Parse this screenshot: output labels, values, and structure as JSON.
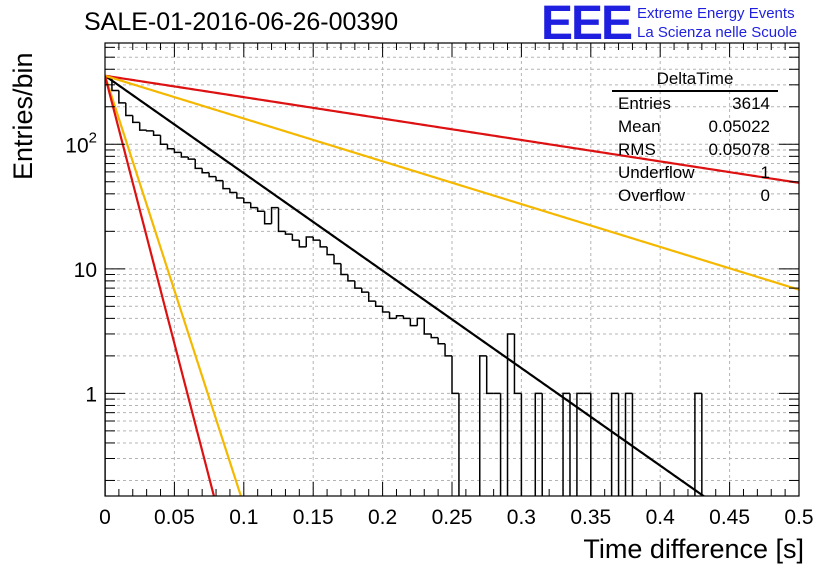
{
  "chart_data": {
    "type": "histogram",
    "title": "SALE-01-2016-06-26-00390",
    "xlabel": "Time difference [s]",
    "ylabel": "Entries/bin",
    "xlim": [
      0,
      0.5
    ],
    "ylim": [
      0.15,
      650
    ],
    "yscale": "log",
    "grid": true,
    "x_ticks": [
      "0",
      "0.05",
      "0.1",
      "0.15",
      "0.2",
      "0.25",
      "0.3",
      "0.35",
      "0.4",
      "0.45",
      "0.5"
    ],
    "y_ticks": [
      {
        "value": 1,
        "base": "1",
        "exp": ""
      },
      {
        "value": 10,
        "base": "10",
        "exp": ""
      },
      {
        "value": 100,
        "base": "10",
        "exp": "2"
      }
    ],
    "bin_width": 0.005,
    "histogram": {
      "name": "DeltaTime",
      "color": "#000000",
      "counts": [
        340,
        270,
        215,
        170,
        150,
        130,
        128,
        118,
        100,
        92,
        86,
        79,
        76,
        64,
        59,
        55,
        51,
        44,
        41,
        37,
        34,
        31,
        29,
        23,
        31,
        20,
        19,
        17,
        15,
        18,
        17,
        15,
        13,
        11,
        9,
        8,
        7,
        6.5,
        5.5,
        5,
        4.5,
        4,
        4.2,
        4,
        3.5,
        4,
        3,
        2.8,
        2.5,
        2,
        1,
        0.1,
        0.1,
        0.1,
        2,
        1,
        1,
        0.1,
        3,
        1,
        0.1,
        0.1,
        1,
        0.1,
        0.1,
        0.1,
        1,
        0.1,
        1,
        1,
        0.1,
        0.1,
        0.1,
        1,
        0.1,
        1,
        0.1,
        0.1,
        0.1,
        0.1,
        0.1,
        0.1,
        0.1,
        0.1,
        0.1,
        1
      ]
    },
    "fits": [
      {
        "name": "fit-black",
        "color": "#000000",
        "y0": 355,
        "tau": 0.0555
      },
      {
        "name": "fit-red-slow",
        "color": "#dd1111",
        "y0": 355,
        "tau": 0.2525
      },
      {
        "name": "fit-yellow-slow",
        "color": "#f5b800",
        "y0": 355,
        "tau": 0.1264
      },
      {
        "name": "fit-yellow-fast",
        "color": "#f5b800",
        "y0": 355,
        "tau": 0.0126
      },
      {
        "name": "fit-red-fast",
        "color": "#dd1111",
        "y0": 355,
        "tau": 0.0101
      }
    ]
  },
  "stats_box": {
    "title": "DeltaTime",
    "rows": [
      {
        "label": "Entries",
        "value": "3614"
      },
      {
        "label": "Mean",
        "value": "0.05022"
      },
      {
        "label": "RMS",
        "value": "0.05078"
      },
      {
        "label": "Underflow",
        "value": "1"
      },
      {
        "label": "Overflow",
        "value": "0"
      }
    ]
  },
  "logo": {
    "mark": "EEE",
    "line1": "Extreme Energy Events",
    "line2": "La Scienza nelle Scuole",
    "color": "#1f1fe0"
  }
}
